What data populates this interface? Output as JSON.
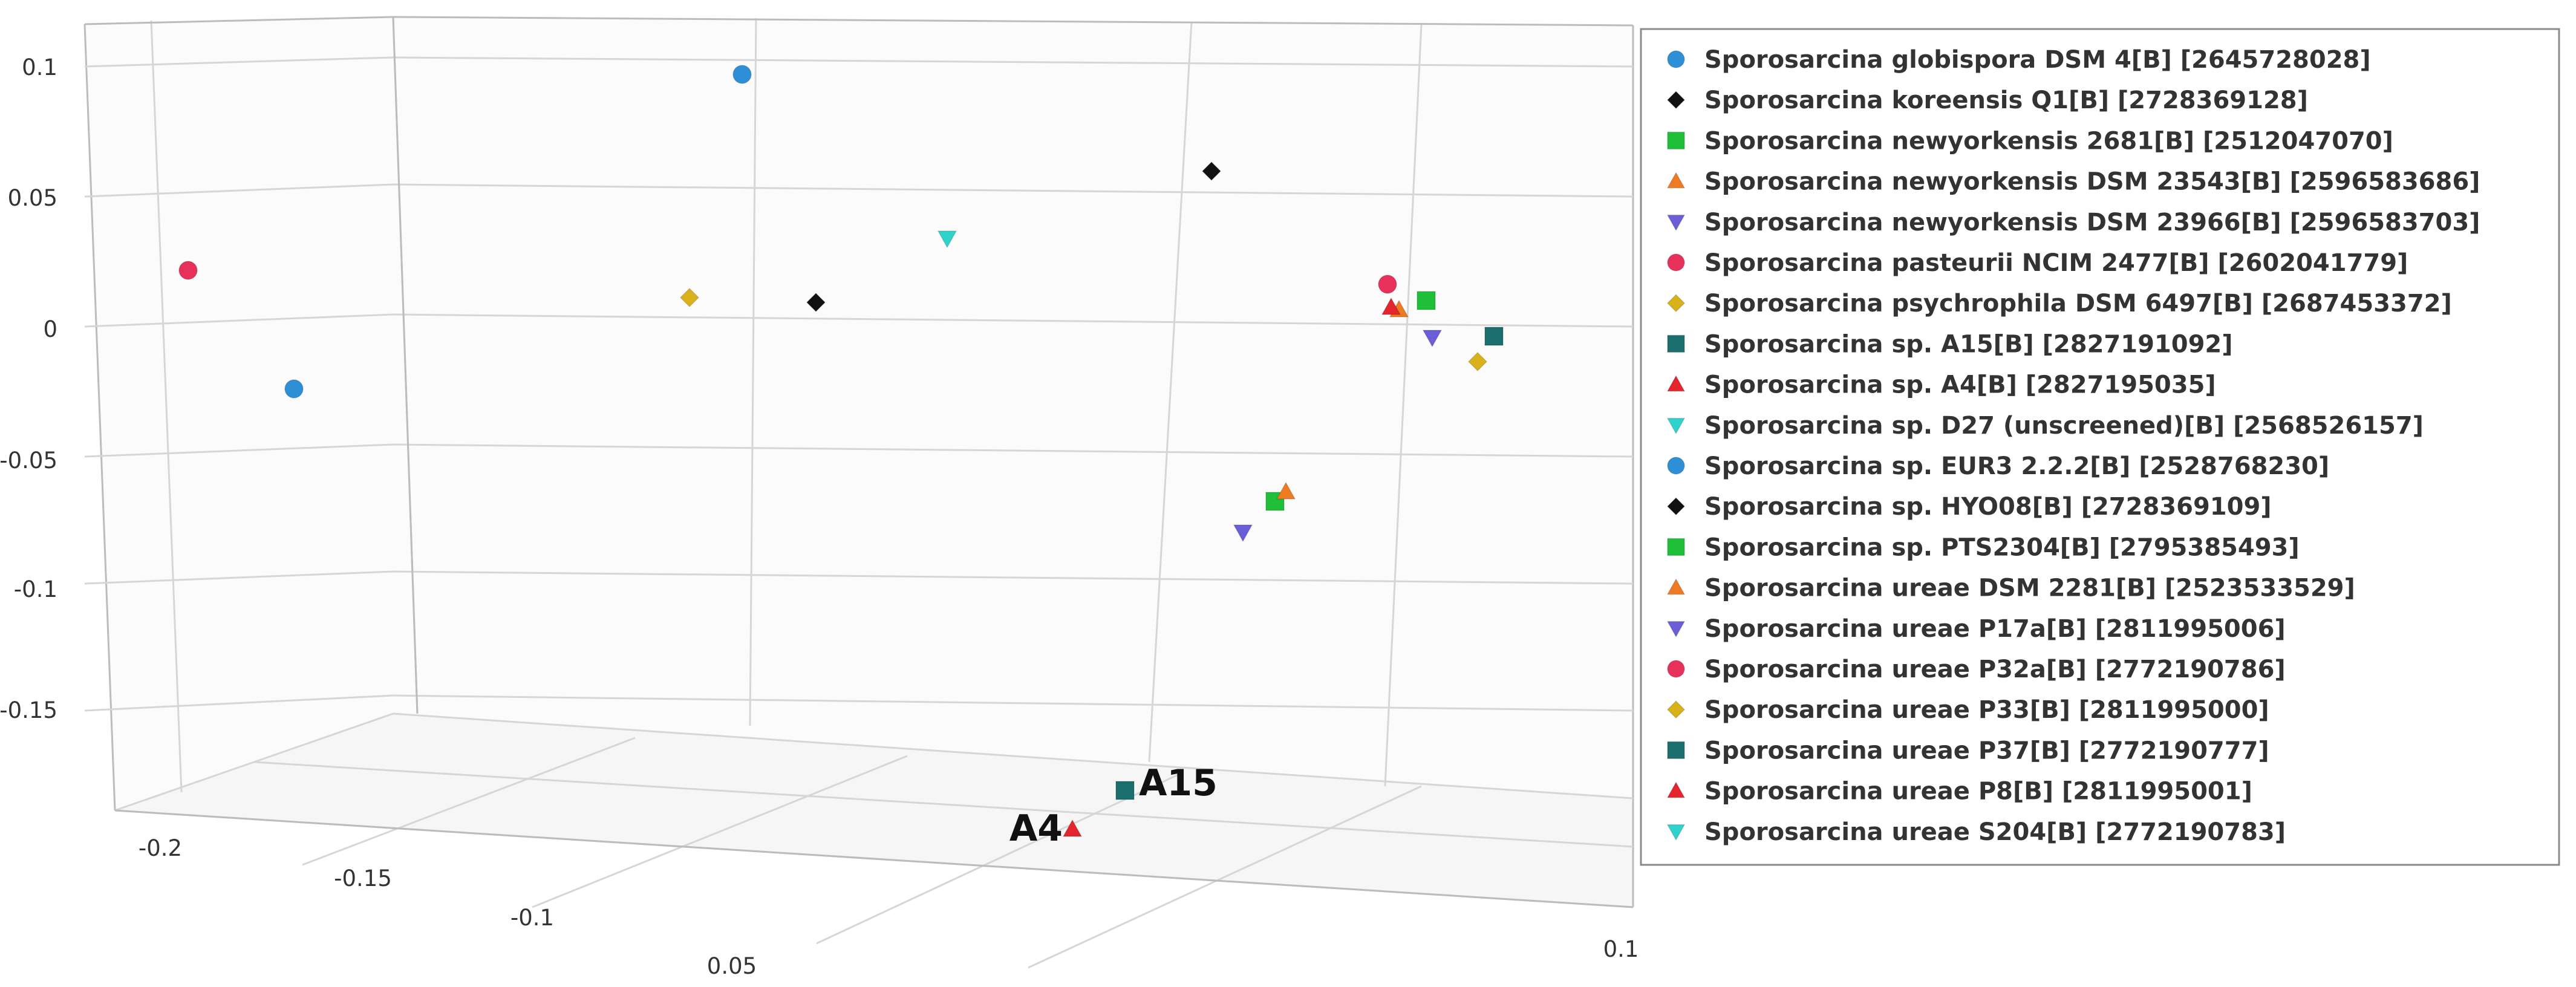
{
  "chart_data": {
    "type": "scatter",
    "title": "",
    "xlabel": "",
    "ylabel": "",
    "zlabel": "",
    "grid": true,
    "legend_placement": "right",
    "y_ticks": [
      "0.1",
      "0.05",
      "0",
      "-0.05",
      "-0.1",
      "-0.15"
    ],
    "x_ticks": [
      "-0.2",
      "-0.15",
      "-0.1",
      "0.05",
      "0.1"
    ],
    "series": [
      {
        "name": "Sporosarcina globispora DSM 4[B] [2645728028]",
        "marker": "circle",
        "color": "#2f8fd6",
        "points": [
          {
            "x": -0.02,
            "y": 0.1
          }
        ]
      },
      {
        "name": "Sporosarcina koreensis Q1[B] [2728369128]",
        "marker": "diamond",
        "color": "#111111",
        "points": [
          {
            "x": 0.03,
            "y": 0.063
          }
        ]
      },
      {
        "name": "Sporosarcina newyorkensis 2681[B] [2512047070]",
        "marker": "square",
        "color": "#1fbf3a",
        "points": [
          {
            "x": 0.07,
            "y": 0.012
          }
        ]
      },
      {
        "name": "Sporosarcina newyorkensis DSM 23543[B] [2596583686]",
        "marker": "triangle-up",
        "color": "#ee7a22",
        "points": [
          {
            "x": 0.068,
            "y": 0.008
          }
        ]
      },
      {
        "name": "Sporosarcina newyorkensis DSM 23966[B] [2596583703]",
        "marker": "triangle-down",
        "color": "#6a5fd6",
        "points": [
          {
            "x": 0.071,
            "y": -0.002
          }
        ]
      },
      {
        "name": "Sporosarcina pasteurii NCIM 2477[B] [2602041779]",
        "marker": "circle",
        "color": "#e8315a",
        "points": [
          {
            "x": -0.19,
            "y": 0.025
          }
        ]
      },
      {
        "name": "Sporosarcina psychrophila DSM 6497[B] [2687453372]",
        "marker": "diamond",
        "color": "#d9b21a",
        "points": [
          {
            "x": -0.05,
            "y": 0.014
          }
        ]
      },
      {
        "name": "Sporosarcina sp. A15[B] [2827191092]",
        "marker": "square",
        "color": "#1b6e6e",
        "points": [
          {
            "x": 0.08,
            "y": -0.001
          }
        ]
      },
      {
        "name": "Sporosarcina sp. A4[B] [2827195035]",
        "marker": "triangle-up",
        "color": "#e3252d",
        "points": [
          {
            "x": 0.066,
            "y": 0.01
          }
        ]
      },
      {
        "name": "Sporosarcina sp. D27 (unscreened)[B] [2568526157]",
        "marker": "triangle-down",
        "color": "#2ed3cc",
        "points": [
          {
            "x": -0.01,
            "y": 0.036
          }
        ]
      },
      {
        "name": "Sporosarcina sp. EUR3 2.2.2[B] [2528768230]",
        "marker": "circle",
        "color": "#2f8fd6",
        "points": [
          {
            "x": -0.16,
            "y": -0.02
          }
        ]
      },
      {
        "name": "Sporosarcina sp. HYO08[B] [2728369109]",
        "marker": "diamond",
        "color": "#111111",
        "points": [
          {
            "x": -0.03,
            "y": 0.012
          }
        ]
      },
      {
        "name": "Sporosarcina sp. PTS2304[B] [2795385493]",
        "marker": "square",
        "color": "#1fbf3a",
        "points": [
          {
            "x": 0.04,
            "y": -0.066
          }
        ]
      },
      {
        "name": "Sporosarcina ureae DSM 2281[B] [2523533529]",
        "marker": "triangle-up",
        "color": "#ee7a22",
        "points": [
          {
            "x": 0.042,
            "y": -0.062
          }
        ]
      },
      {
        "name": "Sporosarcina ureae P17a[B] [2811995006]",
        "marker": "triangle-down",
        "color": "#6a5fd6",
        "points": [
          {
            "x": 0.035,
            "y": -0.078
          }
        ]
      },
      {
        "name": "Sporosarcina ureae P32a[B] [2772190786]",
        "marker": "circle",
        "color": "#e8315a",
        "points": [
          {
            "x": 0.065,
            "y": 0.018
          }
        ]
      },
      {
        "name": "Sporosarcina ureae P33[B] [2811995000]",
        "marker": "diamond",
        "color": "#d9b21a",
        "points": [
          {
            "x": 0.085,
            "y": -0.011
          }
        ]
      },
      {
        "name": "Sporosarcina ureae P37[B] [2772190777]",
        "marker": "square",
        "color": "#1b6e6e",
        "points": [
          {
            "x": 0.0,
            "y": -0.18
          }
        ]
      },
      {
        "name": "Sporosarcina ureae P8[B] [2811995001]",
        "marker": "triangle-up",
        "color": "#e3252d",
        "points": [
          {
            "x": -0.01,
            "y": -0.195
          }
        ]
      },
      {
        "name": "Sporosarcina ureae S204[B] [2772190783]",
        "marker": "triangle-down",
        "color": "#2ed3cc",
        "points": []
      }
    ],
    "annotations": [
      {
        "text": "A15",
        "series": "Sporosarcina ureae P37[B] [2772190777]"
      },
      {
        "text": "A4",
        "series": "Sporosarcina ureae P8[B] [2811995001]"
      }
    ]
  }
}
